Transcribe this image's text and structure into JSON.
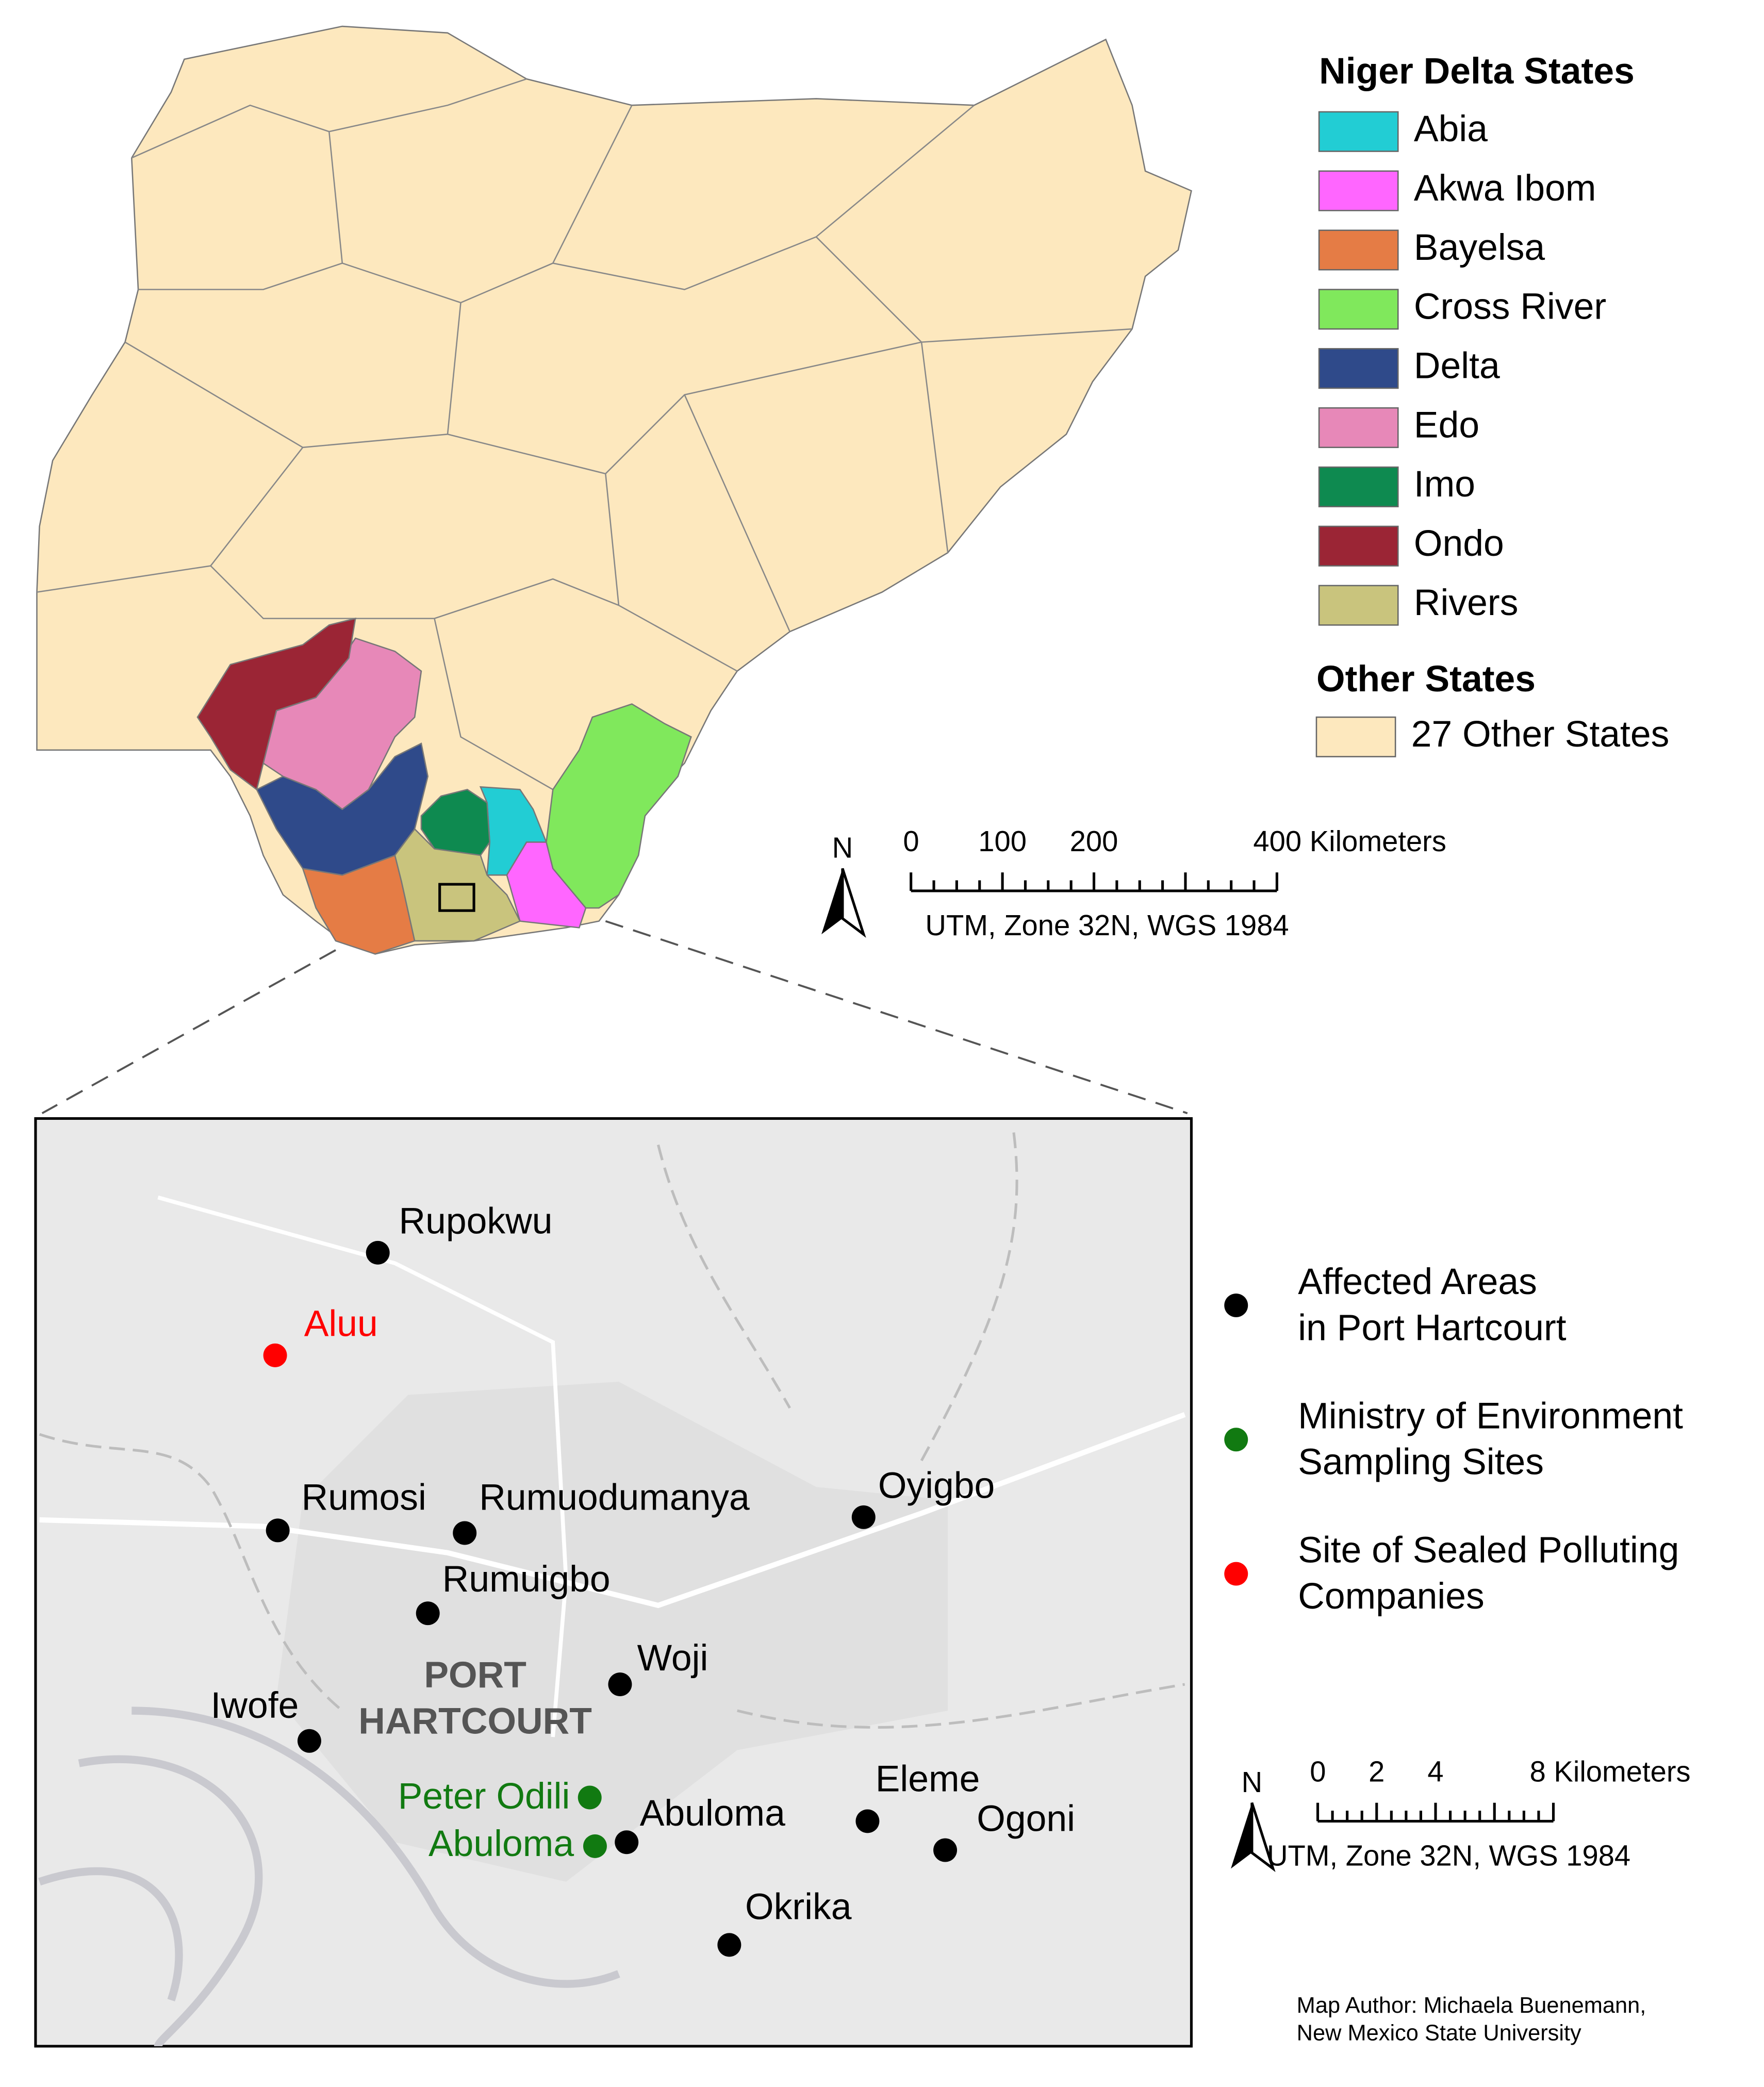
{
  "legend": {
    "title": "Niger Delta States",
    "items": [
      {
        "label": "Abia",
        "color": "#22cdd4"
      },
      {
        "label": "Akwa Ibom",
        "color": "#ff66ff"
      },
      {
        "label": "Bayelsa",
        "color": "#e57c45"
      },
      {
        "label": "Cross River",
        "color": "#80e85c"
      },
      {
        "label": "Delta",
        "color": "#2f4a8a"
      },
      {
        "label": "Edo",
        "color": "#e788b8"
      },
      {
        "label": "Imo",
        "color": "#0e8a50"
      },
      {
        "label": "Ondo",
        "color": "#9b2535"
      },
      {
        "label": "Rivers",
        "color": "#c9c47d"
      }
    ],
    "other_title": "Other States",
    "other_items": [
      {
        "label": "27 Other States",
        "color": "#fde8be"
      }
    ]
  },
  "scale_bar": {
    "north": "N",
    "labels": [
      "0",
      "100",
      "200",
      "400 Kilometers"
    ],
    "projection": "UTM, Zone 32N, WGS 1984"
  },
  "inset": {
    "city_label": [
      "PORT",
      "HARTCOURT"
    ],
    "groups": [
      {
        "label": [
          "Affected Areas",
          "in Port Hartcourt"
        ],
        "color": "#000000",
        "places": [
          "Rupokwu",
          "Rumosi",
          "Rumuodumanya",
          "Oyigbo",
          "Rumuigbo",
          "Woji",
          "Iwofe",
          "Abuloma",
          "Eleme",
          "Ogoni",
          "Okrika"
        ]
      },
      {
        "label": [
          "Ministry of Environment",
          "Sampling Sites"
        ],
        "color": "#117a11",
        "places": [
          "Peter Odili",
          "Abuloma"
        ]
      },
      {
        "label": [
          "Site of Sealed Polluting",
          "Companies"
        ],
        "color": "#ff0000",
        "places": [
          "Aluu"
        ]
      }
    ],
    "scale_bar": {
      "north": "N",
      "labels": [
        "0",
        "2",
        "4",
        "8 Kilometers"
      ],
      "projection": "UTM, Zone 32N, WGS 1984"
    }
  },
  "credit": [
    "Map Author: Michaela Buenemann,",
    "New Mexico State University"
  ]
}
